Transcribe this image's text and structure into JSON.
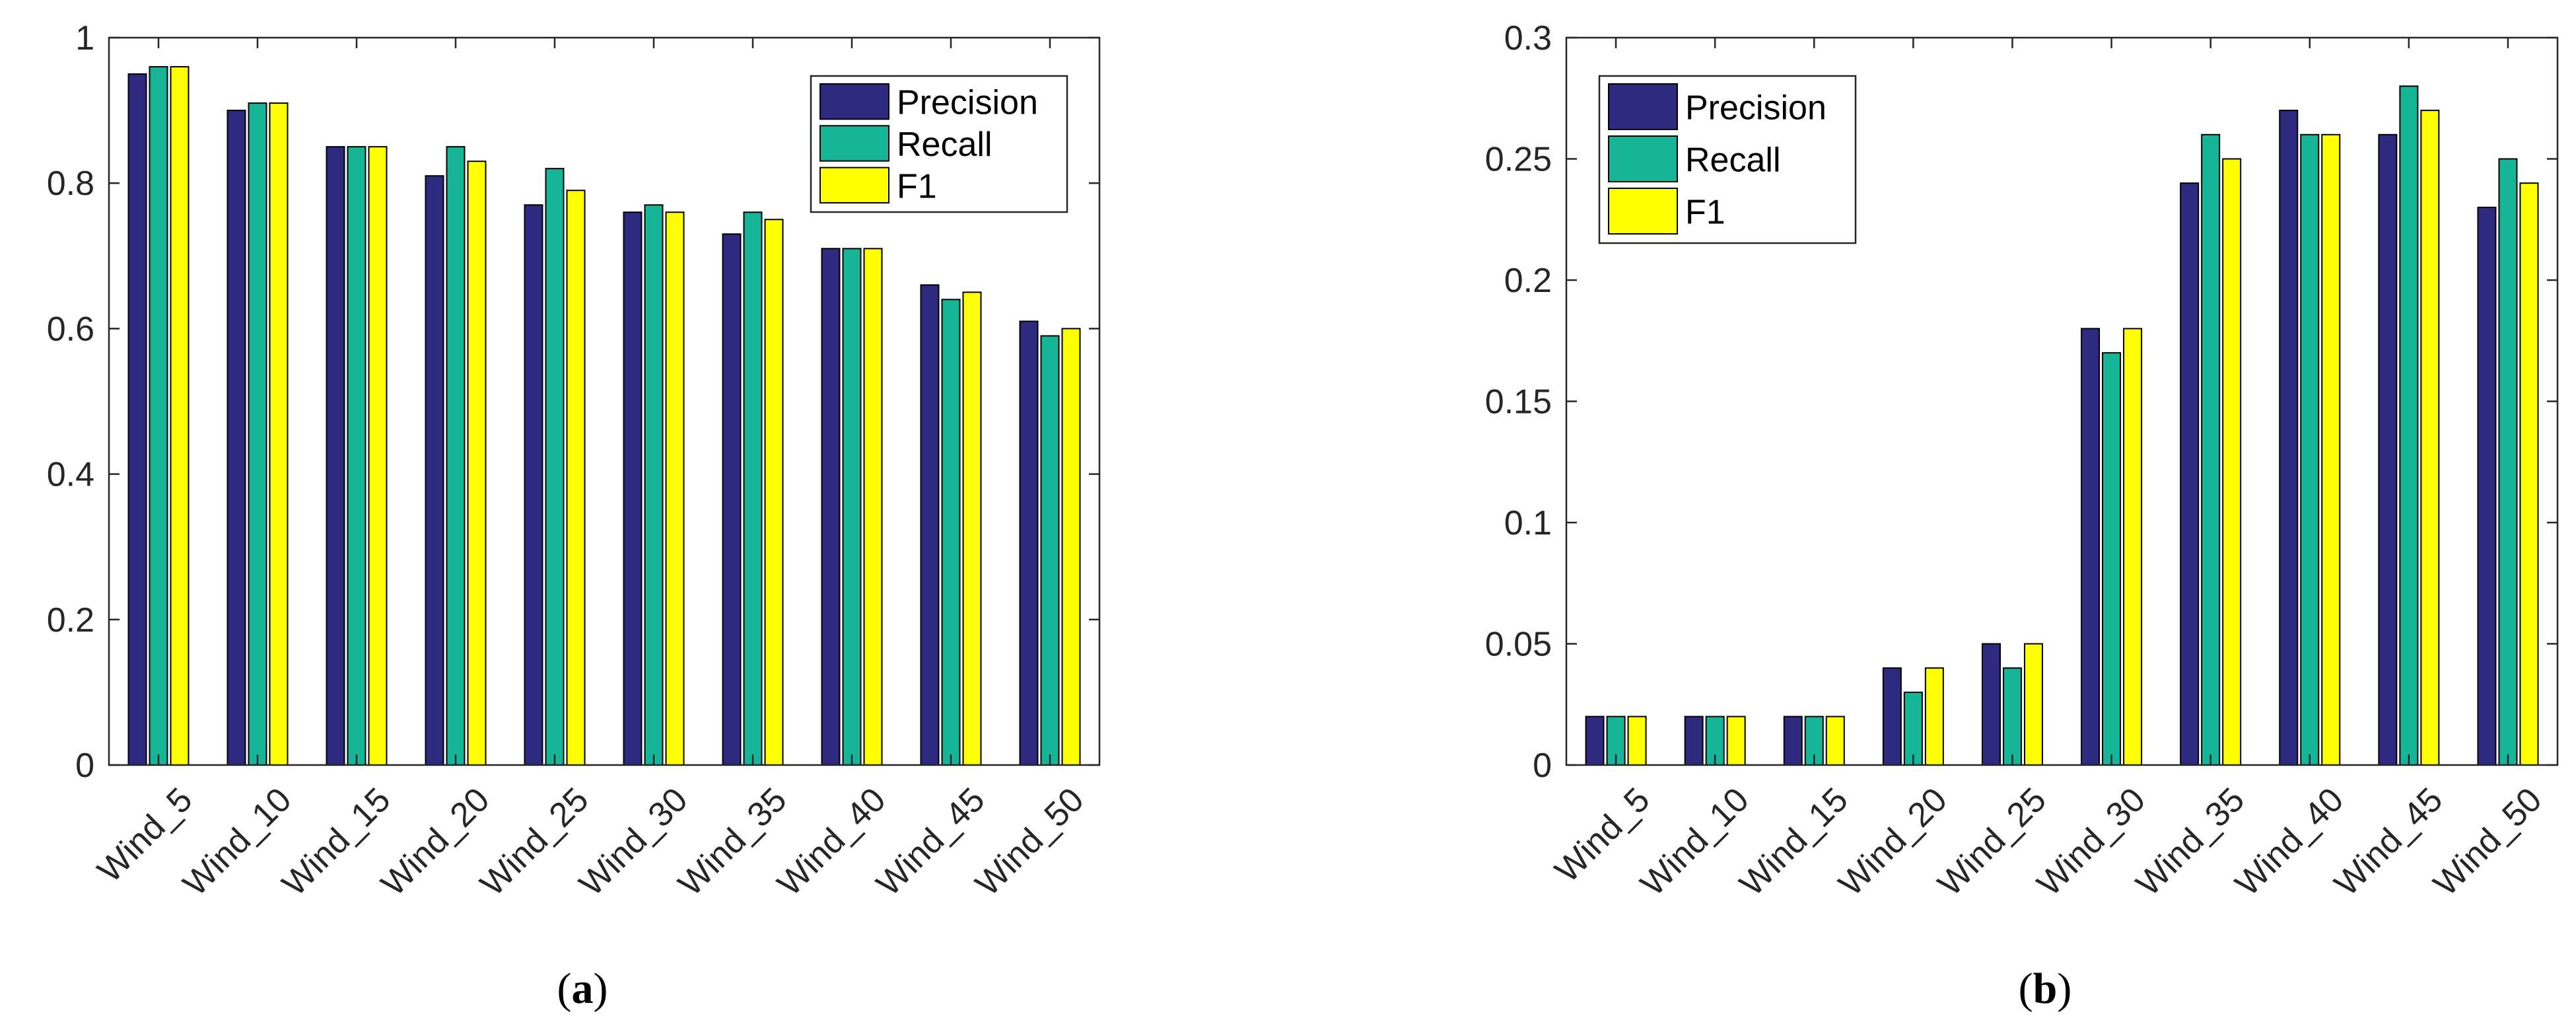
{
  "chart_data": [
    {
      "type": "bar",
      "panel": "a",
      "caption": {
        "open": "(",
        "letter": "a",
        "close": ")"
      },
      "title": "",
      "xlabel": "",
      "ylabel": "",
      "categories": [
        "Wind_5",
        "Wind_10",
        "Wind_15",
        "Wind_20",
        "Wind_25",
        "Wind_30",
        "Wind_35",
        "Wind_40",
        "Wind_45",
        "Wind_50"
      ],
      "ylim": [
        0,
        1
      ],
      "yticks": [
        0,
        0.2,
        0.4,
        0.6,
        0.8,
        1
      ],
      "ytick_labels": [
        "0",
        "0.2",
        "0.4",
        "0.6",
        "0.8",
        "1"
      ],
      "grid": false,
      "legend_position": "top-right",
      "series": [
        {
          "name": "Precision",
          "color": "#2e2a7f",
          "values": [
            0.95,
            0.9,
            0.85,
            0.81,
            0.77,
            0.76,
            0.73,
            0.71,
            0.66,
            0.61
          ]
        },
        {
          "name": "Recall",
          "color": "#16b598",
          "values": [
            0.96,
            0.91,
            0.85,
            0.85,
            0.82,
            0.77,
            0.76,
            0.71,
            0.64,
            0.59
          ]
        },
        {
          "name": "F1",
          "color": "#ffff00",
          "values": [
            0.96,
            0.91,
            0.85,
            0.83,
            0.79,
            0.76,
            0.75,
            0.71,
            0.65,
            0.6
          ]
        }
      ]
    },
    {
      "type": "bar",
      "panel": "b",
      "caption": {
        "open": "(",
        "letter": "b",
        "close": ")"
      },
      "title": "",
      "xlabel": "",
      "ylabel": "",
      "categories": [
        "Wind_5",
        "Wind_10",
        "Wind_15",
        "Wind_20",
        "Wind_25",
        "Wind_30",
        "Wind_35",
        "Wind_40",
        "Wind_45",
        "Wind_50"
      ],
      "ylim": [
        0,
        0.3
      ],
      "yticks": [
        0,
        0.05,
        0.1,
        0.15,
        0.2,
        0.25,
        0.3
      ],
      "ytick_labels": [
        "0",
        "0.05",
        "0.1",
        "0.15",
        "0.2",
        "0.25",
        "0.3"
      ],
      "grid": false,
      "legend_position": "top-left",
      "series": [
        {
          "name": "Precision",
          "color": "#2e2a7f",
          "values": [
            0.02,
            0.02,
            0.02,
            0.04,
            0.05,
            0.18,
            0.24,
            0.27,
            0.26,
            0.23
          ]
        },
        {
          "name": "Recall",
          "color": "#16b598",
          "values": [
            0.02,
            0.02,
            0.02,
            0.03,
            0.04,
            0.17,
            0.26,
            0.26,
            0.28,
            0.25
          ]
        },
        {
          "name": "F1",
          "color": "#ffff00",
          "values": [
            0.02,
            0.02,
            0.02,
            0.04,
            0.05,
            0.18,
            0.25,
            0.26,
            0.27,
            0.24
          ]
        }
      ]
    }
  ]
}
